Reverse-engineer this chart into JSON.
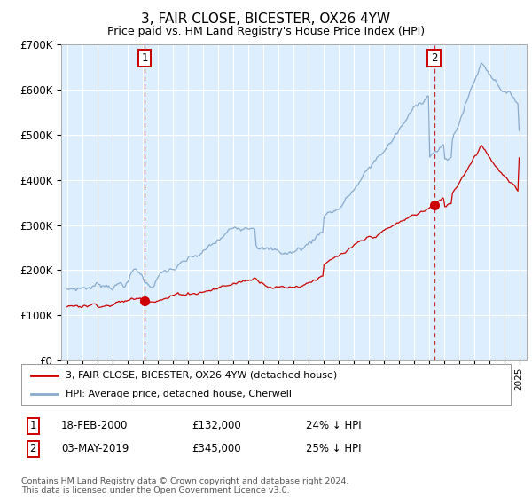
{
  "title": "3, FAIR CLOSE, BICESTER, OX26 4YW",
  "subtitle": "Price paid vs. HM Land Registry's House Price Index (HPI)",
  "ylim": [
    0,
    700000
  ],
  "yticks": [
    0,
    100000,
    200000,
    300000,
    400000,
    500000,
    600000,
    700000
  ],
  "ytick_labels": [
    "£0",
    "£100K",
    "£200K",
    "£300K",
    "£400K",
    "£500K",
    "£600K",
    "£700K"
  ],
  "bg_color": "#ddeeff",
  "grid_color": "#ffffff",
  "red_color": "#cc0000",
  "blue_color": "#88aacc",
  "marker1_year": 2000.13,
  "marker1_value": 132000,
  "marker2_year": 2019.35,
  "marker2_value": 345000,
  "legend_entries": [
    "3, FAIR CLOSE, BICESTER, OX26 4YW (detached house)",
    "HPI: Average price, detached house, Cherwell"
  ],
  "annotation1": [
    "1",
    "18-FEB-2000",
    "£132,000",
    "24% ↓ HPI"
  ],
  "annotation2": [
    "2",
    "03-MAY-2019",
    "£345,000",
    "25% ↓ HPI"
  ],
  "footer": "Contains HM Land Registry data © Crown copyright and database right 2024.\nThis data is licensed under the Open Government Licence v3.0."
}
